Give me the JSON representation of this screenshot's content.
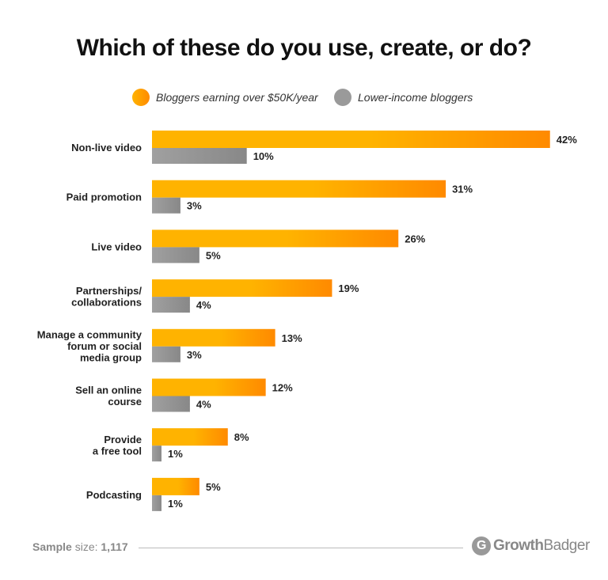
{
  "chart_data": {
    "type": "bar",
    "orientation": "horizontal",
    "title": "Which of these do you use, create, or do?",
    "categories": [
      "Non-live video",
      "Paid promotion",
      "Live video",
      "Partnerships/ collaborations",
      "Manage a community forum or social media group",
      "Sell an online course",
      "Provide a free tool",
      "Podcasting"
    ],
    "category_lines": [
      [
        "Non-live video"
      ],
      [
        "Paid promotion"
      ],
      [
        "Live video"
      ],
      [
        "Partnerships/",
        "collaborations"
      ],
      [
        "Manage a community",
        "forum or social",
        "media group"
      ],
      [
        "Sell an online",
        "course"
      ],
      [
        "Provide",
        "a free tool"
      ],
      [
        "Podcasting"
      ]
    ],
    "series": [
      {
        "name": "Bloggers earning over $50K/year",
        "values": [
          42,
          31,
          26,
          19,
          13,
          12,
          8,
          5
        ],
        "color": "#FFB300",
        "color_end": "#FF8A00"
      },
      {
        "name": "Lower-income bloggers",
        "values": [
          10,
          3,
          5,
          4,
          3,
          4,
          1,
          1
        ],
        "color": "#9E9E9E",
        "color_end": "#888888"
      }
    ],
    "value_suffix": "%",
    "legend": "top",
    "grid": false
  },
  "footer": {
    "sample_label": "Sample",
    "size_label": "size:",
    "sample_value": "1,117",
    "logo_bold": "Growth",
    "logo_light": "Badger"
  }
}
